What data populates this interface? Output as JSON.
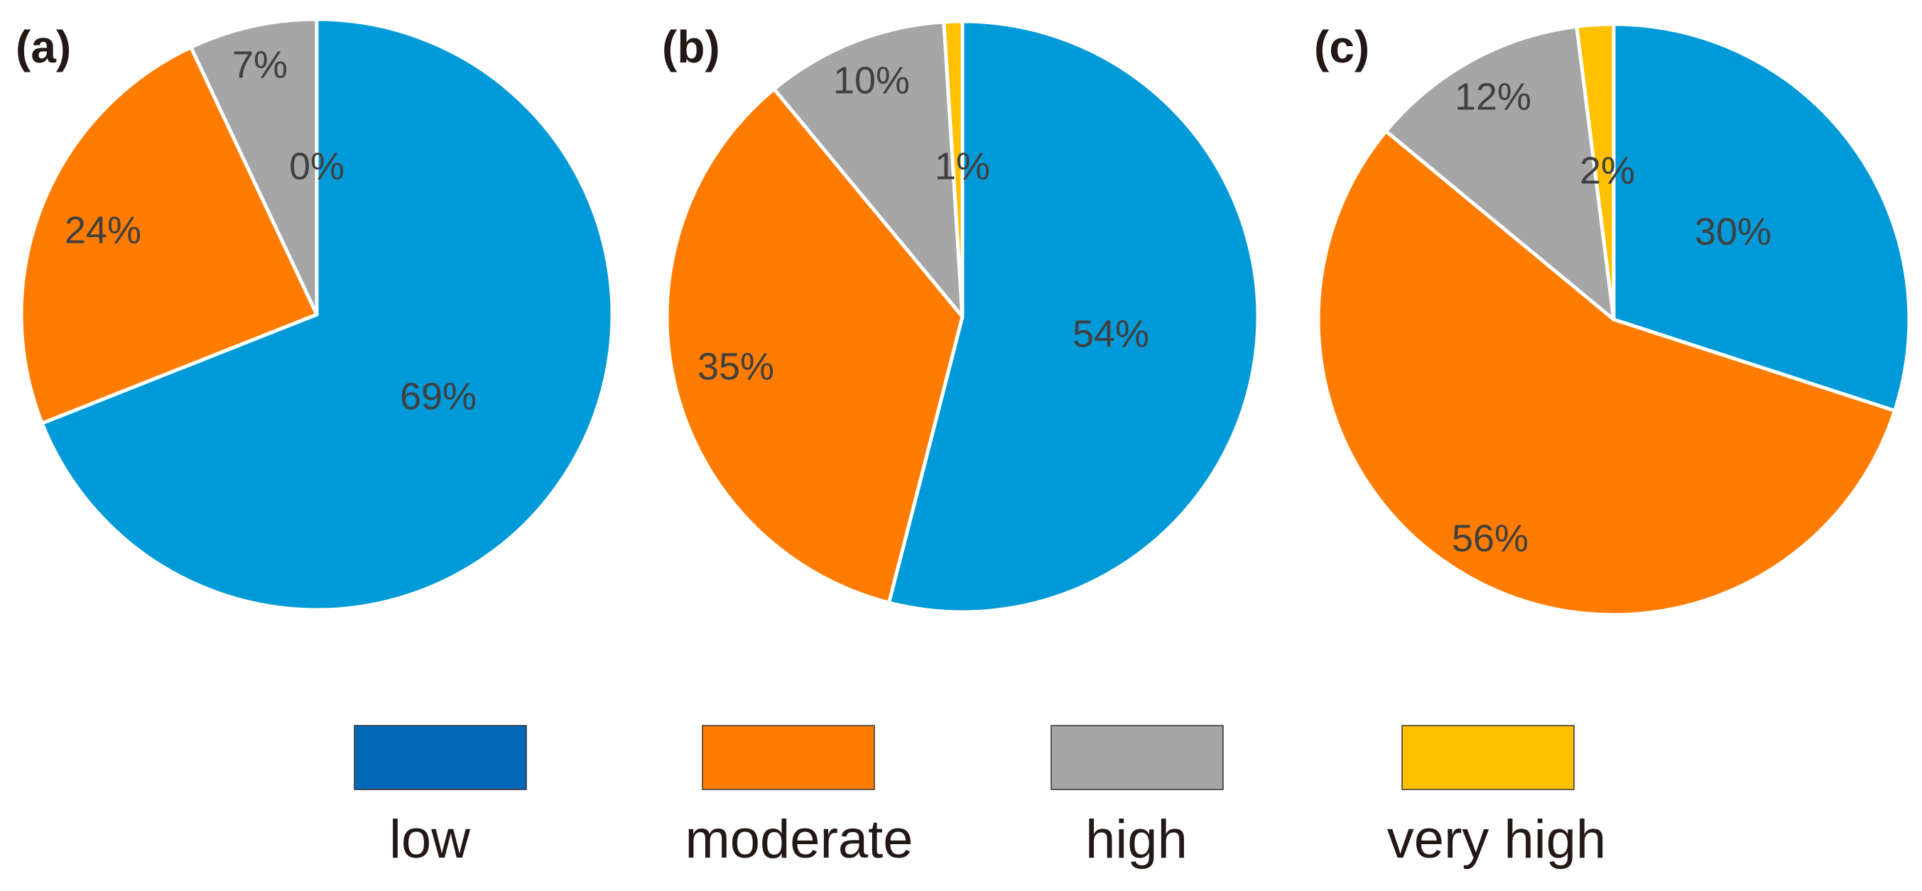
{
  "chart_data": [
    {
      "type": "pie",
      "title": "(a)",
      "slices": [
        {
          "category": "low",
          "value": 69,
          "label": "69%"
        },
        {
          "category": "moderate",
          "value": 24,
          "label": "24%"
        },
        {
          "category": "high",
          "value": 7,
          "label": "7%"
        },
        {
          "category": "very high",
          "value": 0,
          "label": "0%"
        }
      ]
    },
    {
      "type": "pie",
      "title": "(b)",
      "slices": [
        {
          "category": "low",
          "value": 54,
          "label": "54%"
        },
        {
          "category": "moderate",
          "value": 35,
          "label": "35%"
        },
        {
          "category": "high",
          "value": 10,
          "label": "10%"
        },
        {
          "category": "very high",
          "value": 1,
          "label": "1%"
        }
      ]
    },
    {
      "type": "pie",
      "title": "(c)",
      "slices": [
        {
          "category": "low",
          "value": 30,
          "label": "30%"
        },
        {
          "category": "moderate",
          "value": 56,
          "label": "56%"
        },
        {
          "category": "high",
          "value": 12,
          "label": "12%"
        },
        {
          "category": "very high",
          "value": 2,
          "label": "2%"
        }
      ]
    }
  ],
  "legend": {
    "position": "bottom",
    "items": [
      {
        "label": "low",
        "color": "#0068b7"
      },
      {
        "label": "moderate",
        "color": "#ff7c00"
      },
      {
        "label": "high",
        "color": "#a6a6a6"
      },
      {
        "label": "very high",
        "color": "#ffc000"
      }
    ]
  },
  "slice_colors": {
    "low": "#009ad8",
    "moderate": "#ff7c00",
    "high": "#a6a6a6",
    "very high": "#ffc000"
  }
}
